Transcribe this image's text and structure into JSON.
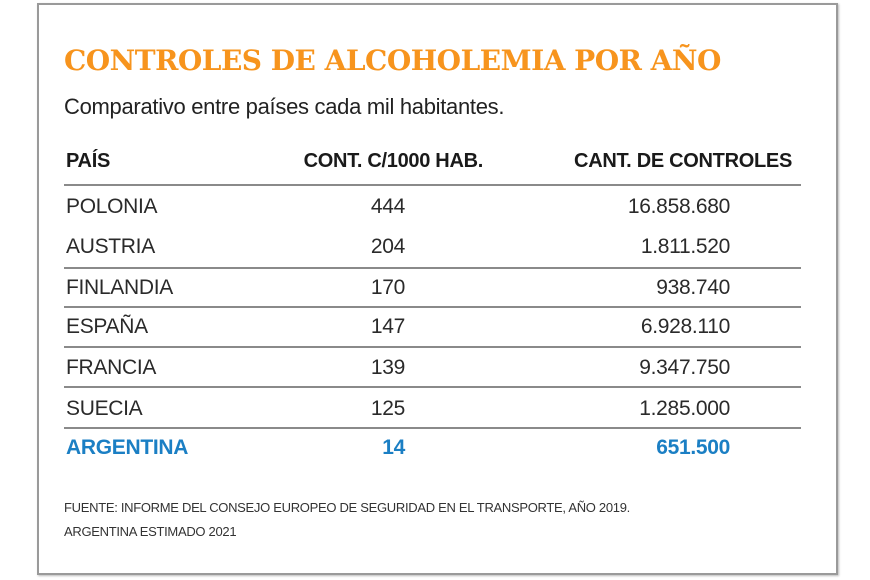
{
  "chart_data": {
    "type": "table",
    "title": "CONTROLES DE ALCOHOLEMIA POR AÑO",
    "subtitle": "Comparativo entre países cada mil habitantes.",
    "columns": [
      "PAÍS",
      "CONT. C/1000 HAB.",
      "CANT. DE CONTROLES"
    ],
    "rows": [
      {
        "country": "POLONIA",
        "per_1000": "444",
        "total": "16.858.680",
        "highlight": false
      },
      {
        "country": "AUSTRIA",
        "per_1000": "204",
        "total": "1.811.520",
        "highlight": false
      },
      {
        "country": "FINLANDIA",
        "per_1000": "170",
        "total": "938.740",
        "highlight": false
      },
      {
        "country": "ESPAÑA",
        "per_1000": "147",
        "total": "6.928.110",
        "highlight": false
      },
      {
        "country": "FRANCIA",
        "per_1000": "139",
        "total": "9.347.750",
        "highlight": false
      },
      {
        "country": "SUECIA",
        "per_1000": "125",
        "total": "1.285.000",
        "highlight": false
      },
      {
        "country": "ARGENTINA",
        "per_1000": "14",
        "total": "651.500",
        "highlight": true
      }
    ],
    "source_line1": "FUENTE: INFORME DEL CONSEJO EUROPEO DE SEGURIDAD EN EL TRANSPORTE, AÑO 2019.",
    "source_line2": "ARGENTINA ESTIMADO 2021"
  },
  "colors": {
    "title": "#f7941d",
    "highlight": "#1b7fc4",
    "text": "#2a2a2a"
  }
}
